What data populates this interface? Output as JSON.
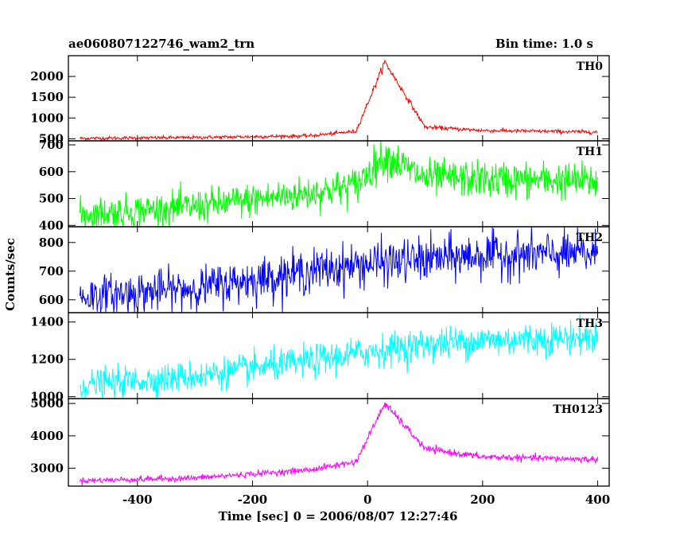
{
  "chart_data": {
    "type": "line",
    "title": "ae060807122746_wam2_trn",
    "subtitle": "Bin time: 1.0 s",
    "xlabel": "Time [sec] 0 = 2006/08/07 12:27:46",
    "ylabel": "Counts/sec",
    "xlim": [
      -520,
      420
    ],
    "x_ticks": [
      -400,
      -200,
      0,
      200,
      400
    ],
    "x_range": [
      -500,
      400
    ],
    "bin_s": 1.0,
    "peak_time": 30,
    "panels": [
      {
        "name": "TH0",
        "color": "#ff0000",
        "ylim": [
          450,
          2500
        ],
        "yticks": [
          500,
          1000,
          1500,
          2000
        ],
        "baseline": [
          [
            -500,
            510
          ],
          [
            -300,
            530
          ],
          [
            -100,
            570
          ],
          [
            -20,
            680
          ],
          [
            30,
            2350
          ],
          [
            100,
            780
          ],
          [
            200,
            700
          ],
          [
            400,
            660
          ]
        ],
        "noise": 20
      },
      {
        "name": "TH1",
        "color": "#00ff00",
        "ylim": [
          395,
          715
        ],
        "yticks": [
          400,
          500,
          600,
          700
        ],
        "baseline": [
          [
            -500,
            440
          ],
          [
            -300,
            470
          ],
          [
            -100,
            520
          ],
          [
            -20,
            550
          ],
          [
            30,
            660
          ],
          [
            100,
            575
          ],
          [
            400,
            565
          ]
        ],
        "noise": 30
      },
      {
        "name": "TH2",
        "color": "#0000ff",
        "ylim": [
          555,
          855
        ],
        "yticks": [
          600,
          700,
          800
        ],
        "baseline": [
          [
            -500,
            610
          ],
          [
            -300,
            640
          ],
          [
            -100,
            700
          ],
          [
            0,
            725
          ],
          [
            100,
            740
          ],
          [
            200,
            755
          ],
          [
            400,
            760
          ]
        ],
        "noise": 35
      },
      {
        "name": "TH3",
        "color": "#00ffff",
        "ylim": [
          990,
          1450
        ],
        "yticks": [
          1000,
          1200,
          1400
        ],
        "baseline": [
          [
            -500,
            1060
          ],
          [
            -300,
            1110
          ],
          [
            -100,
            1190
          ],
          [
            0,
            1240
          ],
          [
            100,
            1280
          ],
          [
            200,
            1300
          ],
          [
            400,
            1320
          ]
        ],
        "noise": 40
      },
      {
        "name": "TH0123",
        "color": "#ff00ff",
        "ylim": [
          2450,
          5150
        ],
        "yticks": [
          3000,
          4000,
          5000
        ],
        "baseline": [
          [
            -500,
            2620
          ],
          [
            -300,
            2700
          ],
          [
            -100,
            2950
          ],
          [
            -20,
            3200
          ],
          [
            30,
            5000
          ],
          [
            100,
            3600
          ],
          [
            200,
            3350
          ],
          [
            400,
            3270
          ]
        ],
        "noise": 45
      }
    ]
  }
}
